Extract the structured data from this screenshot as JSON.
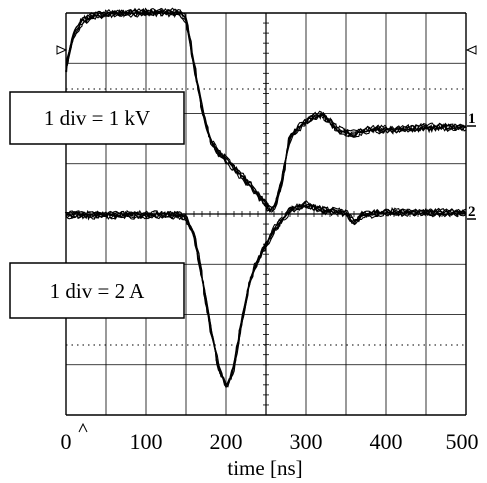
{
  "chart_data": {
    "type": "line",
    "xlabel": "time [ns]",
    "xlim": [
      0,
      500
    ],
    "x_ticks": [
      "0",
      "100",
      "200",
      "300",
      "400",
      "500"
    ],
    "grid": true,
    "grid_divisions": {
      "x": 10,
      "y": 8
    },
    "annotations": [
      {
        "id": "voltage_scale",
        "text": "1 div = 1 kV"
      },
      {
        "id": "current_scale",
        "text": "1 div = 2 A"
      }
    ],
    "channel_markers": [
      "1",
      "2"
    ],
    "series": [
      {
        "channel": "1",
        "unit_per_div": "1 kV",
        "x": [
          0,
          5,
          10,
          20,
          30,
          50,
          80,
          110,
          140,
          150,
          160,
          170,
          180,
          190,
          200,
          215,
          230,
          245,
          255,
          262,
          270,
          280,
          295,
          310,
          320,
          330,
          340,
          355,
          380,
          420,
          460,
          500
        ],
        "y_div": [
          2.9,
          3.3,
          3.6,
          3.85,
          3.95,
          4.0,
          4.02,
          4.03,
          4.03,
          3.9,
          3.0,
          2.1,
          1.5,
          1.25,
          1.1,
          0.85,
          0.6,
          0.3,
          0.1,
          0.2,
          0.7,
          1.55,
          1.8,
          1.95,
          2.0,
          1.85,
          1.7,
          1.6,
          1.7,
          1.7,
          1.75,
          1.75
        ]
      },
      {
        "channel": "2",
        "unit_per_div": "2 A",
        "x": [
          0,
          50,
          100,
          140,
          150,
          160,
          170,
          180,
          190,
          200,
          205,
          210,
          220,
          230,
          240,
          250,
          260,
          270,
          280,
          290,
          300,
          320,
          350,
          360,
          370,
          400,
          450,
          500
        ],
        "y_div": [
          0,
          0,
          0,
          0,
          -0.05,
          -0.4,
          -1.2,
          -2.2,
          -3.0,
          -3.4,
          -3.3,
          -3.0,
          -2.1,
          -1.3,
          -0.9,
          -0.6,
          -0.3,
          -0.1,
          0.1,
          0.15,
          0.2,
          0.1,
          0.05,
          -0.15,
          0.0,
          0.05,
          0.05,
          0.05
        ]
      }
    ]
  }
}
